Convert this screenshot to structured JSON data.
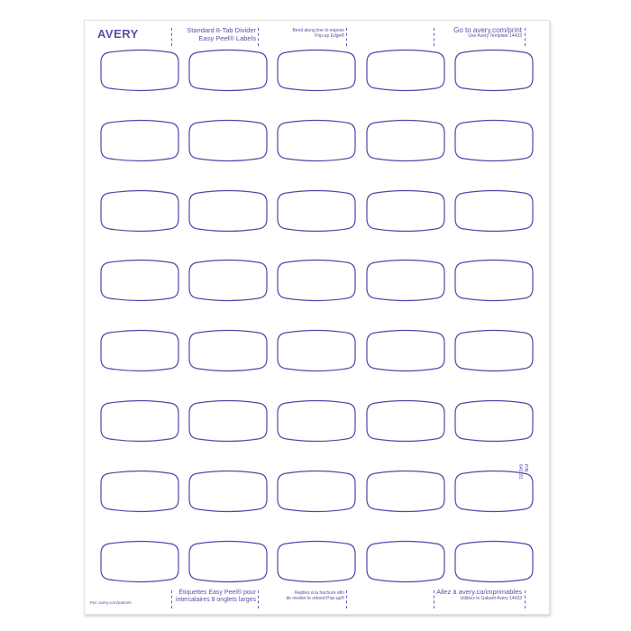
{
  "brand": "AVERY",
  "header": {
    "title_line1": "Standard 8-Tab Divider",
    "title_line2": "Easy Peel® Labels",
    "bend_line1": "Bend along line to expose",
    "bend_line2": "Pop-up Edge®",
    "goto_line1": "Go to avery.com/print",
    "goto_line2": "Use Avery Template 14433"
  },
  "footer": {
    "patents": "Pat: avery.com/patents",
    "title_line1": "Étiquettes Easy Peel® pour",
    "title_line2": "intercalaires 8 onglets larges",
    "bend_line1": "Repliez à la hachure afin",
    "bend_line2": "de révéler le rebord Pop-up®",
    "goto_line1": "Allez à avery.ca/imprimables",
    "goto_line2": "Utilisez le Gabarit Avery 14433"
  },
  "part_number": "P/N 640181",
  "grid": {
    "rows": 8,
    "columns": 5
  },
  "colors": {
    "label_outline": "#5246a8",
    "text": "#5a4fa8"
  }
}
